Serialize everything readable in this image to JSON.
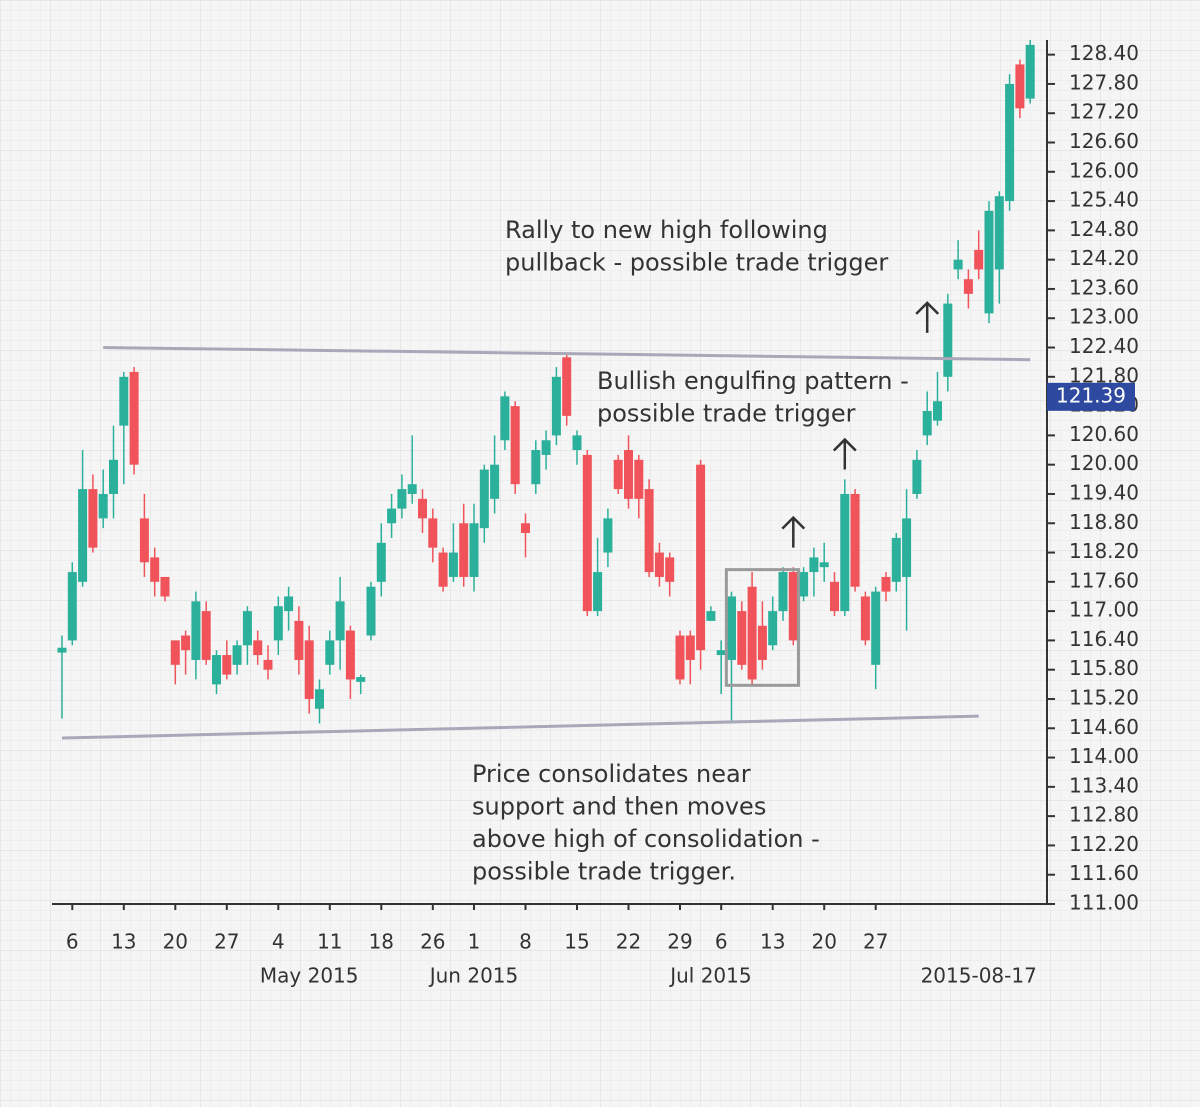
{
  "chart_data": {
    "type": "candlestick",
    "x": [
      "2015-04-02",
      "2015-04-06",
      "2015-04-07",
      "2015-04-08",
      "2015-04-09",
      "2015-04-10",
      "2015-04-13",
      "2015-04-14",
      "2015-04-15",
      "2015-04-16",
      "2015-04-17",
      "2015-04-20",
      "2015-04-21",
      "2015-04-22",
      "2015-04-23",
      "2015-04-24",
      "2015-04-27",
      "2015-04-28",
      "2015-04-29",
      "2015-04-30",
      "2015-05-01",
      "2015-05-04",
      "2015-05-05",
      "2015-05-06",
      "2015-05-07",
      "2015-05-08",
      "2015-05-11",
      "2015-05-12",
      "2015-05-13",
      "2015-05-14",
      "2015-05-15",
      "2015-05-18",
      "2015-05-19",
      "2015-05-20",
      "2015-05-21",
      "2015-05-22",
      "2015-05-26",
      "2015-05-27",
      "2015-05-28",
      "2015-05-29",
      "2015-06-01",
      "2015-06-02",
      "2015-06-03",
      "2015-06-04",
      "2015-06-05",
      "2015-06-08",
      "2015-06-09",
      "2015-06-10",
      "2015-06-11",
      "2015-06-12",
      "2015-06-15",
      "2015-06-16",
      "2015-06-17",
      "2015-06-18",
      "2015-06-19",
      "2015-06-22",
      "2015-06-23",
      "2015-06-24",
      "2015-06-25",
      "2015-06-26",
      "2015-06-29",
      "2015-06-30",
      "2015-07-01",
      "2015-07-02",
      "2015-07-06",
      "2015-07-07",
      "2015-07-08",
      "2015-07-09",
      "2015-07-10",
      "2015-07-13",
      "2015-07-14",
      "2015-07-15",
      "2015-07-16",
      "2015-07-17",
      "2015-07-20",
      "2015-07-21",
      "2015-07-22",
      "2015-07-23",
      "2015-07-24",
      "2015-07-27",
      "2015-07-28",
      "2015-07-29",
      "2015-07-30",
      "2015-07-31",
      "2015-08-03",
      "2015-08-04",
      "2015-08-05",
      "2015-08-06",
      "2015-08-07",
      "2015-08-10",
      "2015-08-11",
      "2015-08-12",
      "2015-08-13",
      "2015-08-14",
      "2015-08-17"
    ],
    "open": [
      116.15,
      116.4,
      117.6,
      119.5,
      118.9,
      119.4,
      120.8,
      121.9,
      118.9,
      118.1,
      117.7,
      116.4,
      116.5,
      116.0,
      117.0,
      115.5,
      116.1,
      115.9,
      116.3,
      116.4,
      116.0,
      116.4,
      117.0,
      116.8,
      116.4,
      115.0,
      115.9,
      116.4,
      116.6,
      115.55,
      116.5,
      117.6,
      118.8,
      119.1,
      119.4,
      119.3,
      118.9,
      118.2,
      117.7,
      118.8,
      117.7,
      118.7,
      119.3,
      120.5,
      121.2,
      118.8,
      119.6,
      120.2,
      120.6,
      122.2,
      120.3,
      120.2,
      117.0,
      118.2,
      120.1,
      120.3,
      120.1,
      119.5,
      118.2,
      118.1,
      116.5,
      116.5,
      120.0,
      116.8,
      116.1,
      116.0,
      117.0,
      117.5,
      116.7,
      116.3,
      117.0,
      117.8,
      117.3,
      117.8,
      117.9,
      117.6,
      117.0,
      119.4,
      117.3,
      115.9,
      117.7,
      117.6,
      117.7,
      119.4,
      120.6,
      120.9,
      121.8,
      124.0,
      123.8,
      124.4,
      123.1,
      124.0,
      125.4,
      128.2,
      127.5
    ],
    "high": [
      116.5,
      118.0,
      120.3,
      119.8,
      119.9,
      120.8,
      121.9,
      122.0,
      119.4,
      118.3,
      117.7,
      116.4,
      116.6,
      117.4,
      117.2,
      116.2,
      116.4,
      116.4,
      117.1,
      116.6,
      116.3,
      117.3,
      117.5,
      117.1,
      116.7,
      115.6,
      116.6,
      117.7,
      116.7,
      115.7,
      117.6,
      118.8,
      119.4,
      119.8,
      120.6,
      119.5,
      119.1,
      118.3,
      118.8,
      119.2,
      119.2,
      120.0,
      120.6,
      121.5,
      121.3,
      119.0,
      120.5,
      120.7,
      122.0,
      122.3,
      120.7,
      120.3,
      118.5,
      119.1,
      120.2,
      120.6,
      120.2,
      119.7,
      118.4,
      118.2,
      116.6,
      116.6,
      120.1,
      117.1,
      116.4,
      117.4,
      117.2,
      117.8,
      117.2,
      117.3,
      117.9,
      117.9,
      117.9,
      118.3,
      118.4,
      117.8,
      119.7,
      119.5,
      117.4,
      117.5,
      117.8,
      118.6,
      119.5,
      120.3,
      121.5,
      121.9,
      123.5,
      124.6,
      124.0,
      124.8,
      125.4,
      125.6,
      128.0,
      128.3,
      128.7
    ],
    "low": [
      114.8,
      116.3,
      117.5,
      118.2,
      118.7,
      118.9,
      119.6,
      119.8,
      117.7,
      117.3,
      117.2,
      115.5,
      115.7,
      115.6,
      115.9,
      115.3,
      115.6,
      115.7,
      115.9,
      115.9,
      115.6,
      116.1,
      116.6,
      115.7,
      114.9,
      114.7,
      115.7,
      115.8,
      115.2,
      115.3,
      116.4,
      117.3,
      118.5,
      118.9,
      119.2,
      118.6,
      118.0,
      117.4,
      117.6,
      117.5,
      117.4,
      118.4,
      119.0,
      120.3,
      119.4,
      118.1,
      119.4,
      119.9,
      120.4,
      120.8,
      120.0,
      116.9,
      116.9,
      117.9,
      119.4,
      119.1,
      118.9,
      117.7,
      117.5,
      117.3,
      115.5,
      115.5,
      115.8,
      116.8,
      115.3,
      114.7,
      115.8,
      115.5,
      115.8,
      116.2,
      116.8,
      116.3,
      117.2,
      117.3,
      117.6,
      116.9,
      116.9,
      117.4,
      116.3,
      115.4,
      117.2,
      117.4,
      116.6,
      119.3,
      120.4,
      120.8,
      121.5,
      123.8,
      123.2,
      123.8,
      122.9,
      123.3,
      125.2,
      127.1,
      127.4
    ],
    "close": [
      116.25,
      117.8,
      119.5,
      118.3,
      119.4,
      120.1,
      121.8,
      120.0,
      118.0,
      117.6,
      117.3,
      115.9,
      116.2,
      117.2,
      116.0,
      116.1,
      115.7,
      116.3,
      117.0,
      116.1,
      115.8,
      117.1,
      117.3,
      116.0,
      115.2,
      115.4,
      116.4,
      117.2,
      115.6,
      115.65,
      117.5,
      118.4,
      119.1,
      119.5,
      119.6,
      118.9,
      118.3,
      117.5,
      118.2,
      117.7,
      118.8,
      119.9,
      120.0,
      121.4,
      119.6,
      118.6,
      120.3,
      120.5,
      121.8,
      121.0,
      120.6,
      117.0,
      117.8,
      118.9,
      119.5,
      119.3,
      119.3,
      117.8,
      117.7,
      117.6,
      115.6,
      116.0,
      116.2,
      117.0,
      116.2,
      117.3,
      115.9,
      115.6,
      116.0,
      117.0,
      117.8,
      116.4,
      117.8,
      118.1,
      118.0,
      117.0,
      119.4,
      117.5,
      116.4,
      117.4,
      117.4,
      118.5,
      118.9,
      120.1,
      121.1,
      121.3,
      123.3,
      124.2,
      123.5,
      124.0,
      125.2,
      125.5,
      127.8,
      127.3,
      128.6
    ],
    "up_color": "#2bb09c",
    "down_color": "#f0545a",
    "ylim": [
      111,
      128.7
    ],
    "yticks": [
      {
        "value": 111,
        "label": "111.00"
      },
      {
        "value": 111.6,
        "label": "111.60"
      },
      {
        "value": 112.2,
        "label": "112.20"
      },
      {
        "value": 112.8,
        "label": "112.80"
      },
      {
        "value": 113.4,
        "label": "113.40"
      },
      {
        "value": 114,
        "label": "114.00"
      },
      {
        "value": 114.6,
        "label": "114.60"
      },
      {
        "value": 115.2,
        "label": "115.20"
      },
      {
        "value": 115.8,
        "label": "115.80"
      },
      {
        "value": 116.4,
        "label": "116.40"
      },
      {
        "value": 117,
        "label": "117.00"
      },
      {
        "value": 117.6,
        "label": "117.60"
      },
      {
        "value": 118.2,
        "label": "118.20"
      },
      {
        "value": 118.8,
        "label": "118.80"
      },
      {
        "value": 119.4,
        "label": "119.40"
      },
      {
        "value": 120,
        "label": "120.00"
      },
      {
        "value": 120.6,
        "label": "120.60"
      },
      {
        "value": 121.2,
        "label": "121.20"
      },
      {
        "value": 121.8,
        "label": "121.80"
      },
      {
        "value": 122.4,
        "label": "122.40"
      },
      {
        "value": 123,
        "label": "123.00"
      },
      {
        "value": 123.6,
        "label": "123.60"
      },
      {
        "value": 124.2,
        "label": "124.20"
      },
      {
        "value": 124.8,
        "label": "124.80"
      },
      {
        "value": 125.4,
        "label": "125.40"
      },
      {
        "value": 126,
        "label": "126.00"
      },
      {
        "value": 126.6,
        "label": "126.60"
      },
      {
        "value": 127.2,
        "label": "127.20"
      },
      {
        "value": 127.8,
        "label": "127.80"
      },
      {
        "value": 128.4,
        "label": "128.40"
      }
    ],
    "xticks": [
      {
        "value": "2015-04-06",
        "label": "6"
      },
      {
        "value": "2015-04-13",
        "label": "13"
      },
      {
        "value": "2015-04-20",
        "label": "20"
      },
      {
        "value": "2015-04-27",
        "label": "27"
      },
      {
        "value": "2015-05-04",
        "label": "4"
      },
      {
        "value": "2015-05-11",
        "label": "11"
      },
      {
        "value": "2015-05-18",
        "label": "18"
      },
      {
        "value": "2015-05-26",
        "label": "26"
      },
      {
        "value": "2015-06-01",
        "label": "1"
      },
      {
        "value": "2015-06-08",
        "label": "8"
      },
      {
        "value": "2015-06-15",
        "label": "15"
      },
      {
        "value": "2015-06-22",
        "label": "22"
      },
      {
        "value": "2015-06-29",
        "label": "29"
      },
      {
        "value": "2015-07-06",
        "label": "6"
      },
      {
        "value": "2015-07-13",
        "label": "13"
      },
      {
        "value": "2015-07-20",
        "label": "20"
      },
      {
        "value": "2015-07-27",
        "label": "27"
      }
    ],
    "month_labels": [
      {
        "value": "2015-05-07",
        "label": "May 2015"
      },
      {
        "value": "2015-06-01",
        "label": "Jun 2015"
      },
      {
        "value": "2015-07-02",
        "label": "Jul 2015"
      },
      {
        "value": "2015-08-10",
        "label": "2015-08-17"
      }
    ],
    "price_label": {
      "value": 121.39,
      "label": "121.39"
    },
    "trendlines": [
      {
        "x": [
          "2015-04-09",
          "2015-08-17"
        ],
        "y": [
          122.4,
          122.15
        ]
      },
      {
        "x": [
          "2015-04-02",
          "2015-08-10"
        ],
        "y": [
          114.4,
          114.85
        ]
      }
    ],
    "box": {
      "x": [
        "2015-07-07",
        "2015-07-15"
      ],
      "y": [
        115.48,
        117.85
      ]
    },
    "arrows": [
      {
        "x": "2015-08-03",
        "y": 122.7
      },
      {
        "x": "2015-07-15",
        "y": 118.3
      },
      {
        "x": "2015-07-22",
        "y": 119.9
      }
    ],
    "annotations": [
      {
        "lines": [
          "Rally to new high following",
          "pullback - possible trade trigger"
        ]
      },
      {
        "lines": [
          "Bullish engulfing pattern -",
          "possible trade trigger"
        ]
      },
      {
        "lines": [
          "Price consolidates near",
          "support and then moves",
          "above high of consolidation -",
          "possible trade trigger."
        ]
      }
    ]
  }
}
